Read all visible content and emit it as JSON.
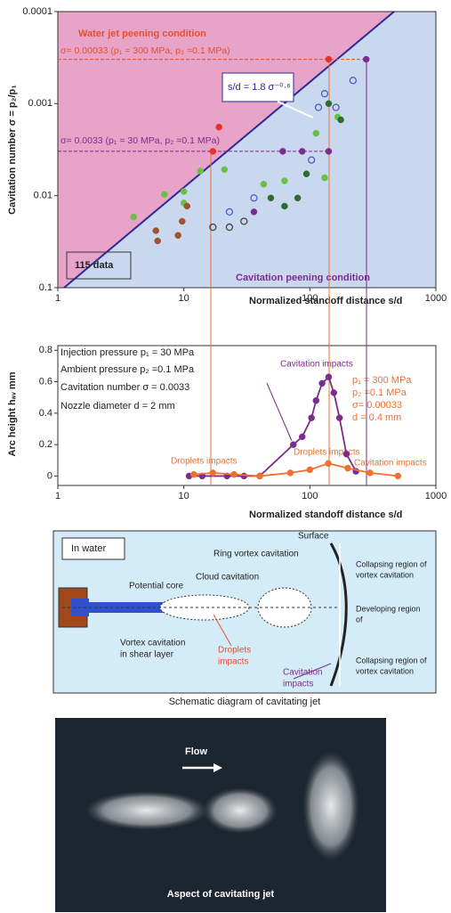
{
  "chart_data": [
    {
      "type": "scatter",
      "log_x": true,
      "log_y": true,
      "x_label": "Normalized standoff distance s/d",
      "y_label": "Cavitation number σ = p₂/p₁",
      "xlim": [
        1,
        1000
      ],
      "ylim": [
        0.1,
        0.0001
      ],
      "xticks": [
        1,
        10,
        100,
        1000
      ],
      "yticks": [
        0.0001,
        0.001,
        0.01,
        0.1
      ],
      "annotations": {
        "upper_region": "Water jet peening condition",
        "lower_region": "Cavitation peening condition",
        "count": "115 data",
        "formula": "s/d = 1.8 σ⁻⁰·⁶"
      },
      "reference_lines": [
        {
          "value": 0.00033,
          "label": "σ= 0.00033 (p₁ = 300 MPa, p₂ =0.1 MPa)"
        },
        {
          "value": 0.0033,
          "label": "σ= 0.0033 (p₁ = 30 MPa, p₂ =0.1 MPa)"
        }
      ],
      "series": [
        {
          "color": "#6abf45",
          "marker": "filled",
          "x": [
            4,
            7,
            10,
            10,
            13.5,
            21,
            43,
            63,
            112,
            131,
            166
          ],
          "values": [
            0.017,
            0.0097,
            0.009,
            0.012,
            0.0054,
            0.0052,
            0.0075,
            0.0069,
            0.0021,
            0.0064,
            0.0014
          ]
        },
        {
          "color": "#a0522d",
          "marker": "filled",
          "x": [
            6.2,
            9.7,
            9,
            10.6,
            6
          ],
          "values": [
            0.031,
            0.019,
            0.027,
            0.013,
            0.024
          ]
        },
        {
          "color": "#2e6b30",
          "marker": "filled",
          "x": [
            63,
            80,
            49,
            94,
            141,
            176
          ],
          "values": [
            0.013,
            0.0106,
            0.0106,
            0.0058,
            0.001,
            0.0015
          ]
        },
        {
          "color": "#4a5fc1",
          "marker": "open",
          "x": [
            23,
            36,
            103,
            117,
            131,
            161,
            220
          ],
          "values": [
            0.015,
            0.0106,
            0.0041,
            0.0011,
            0.00078,
            0.0011,
            0.00056
          ]
        },
        {
          "color": "#444444",
          "marker": "open",
          "x": [
            17,
            23,
            30
          ],
          "values": [
            0.022,
            0.022,
            0.019
          ]
        },
        {
          "color": "#7b2d8e",
          "marker": "filled",
          "x": [
            61,
            87,
            141,
            280,
            36
          ],
          "values": [
            0.0033,
            0.0033,
            0.0033,
            0.00033,
            0.015
          ]
        },
        {
          "color": "#e8302a",
          "marker": "filled",
          "x": [
            17,
            141,
            19
          ],
          "values": [
            0.0033,
            0.00033,
            0.0018
          ]
        }
      ]
    },
    {
      "type": "line",
      "log_x": true,
      "x_label": "Normalized standoff distance s/d",
      "y_label": "Arc height hₐᵥ mm",
      "xlim": [
        1,
        1000
      ],
      "ylim": [
        -0.06,
        0.83
      ],
      "xticks": [
        1,
        10,
        100,
        1000
      ],
      "yticks": [
        0,
        0.2,
        0.4,
        0.6,
        0.8
      ],
      "conditions_left": [
        "Injection pressure p₁ = 30 MPa",
        "Ambient pressure p₂ =0.1 MPa",
        "Cavitation number σ = 0.0033",
        "Nozzle diameter d = 2 mm"
      ],
      "conditions_right": [
        "p₁ = 300 MPa",
        "p₂ =0.1 MPa",
        "σ= 0.00033",
        "d = 0.4 mm"
      ],
      "annotations": [
        "Cavitation impacts",
        "Droplets impacts",
        "Droplets impacts",
        "Cavitation impacts"
      ],
      "series": [
        {
          "color": "#7b2d8e",
          "x": [
            11,
            14,
            22,
            30,
            40,
            74,
            87,
            103,
            112,
            125,
            141,
            155,
            172,
            195,
            232
          ],
          "values": [
            0,
            0,
            0,
            0,
            0,
            0.2,
            0.25,
            0.37,
            0.48,
            0.59,
            0.63,
            0.53,
            0.37,
            0.14,
            0.03
          ]
        },
        {
          "color": "#f07030",
          "x": [
            12,
            17,
            25,
            40,
            70,
            100,
            140,
            200,
            300,
            500
          ],
          "values": [
            0.01,
            0.02,
            0.01,
            0,
            0.02,
            0.04,
            0.08,
            0.05,
            0.02,
            0
          ]
        }
      ]
    }
  ],
  "diagram": {
    "caption": "Schematic diagram of cavitating jet",
    "labels": [
      "In water",
      "Surface",
      "Ring vortex cavitation",
      "Cloud cavitation",
      "Potential core",
      "Vortex cavitation",
      "in shear layer",
      "Droplets",
      "impacts",
      "Cavitation",
      "impacts",
      "Collapsing region of",
      "vortex cavitation",
      "Developing region",
      "of",
      "Collapsing region of",
      "vortex cavitation"
    ]
  },
  "photo": {
    "caption": "Aspect of cavitating jet",
    "flow": "Flow"
  }
}
